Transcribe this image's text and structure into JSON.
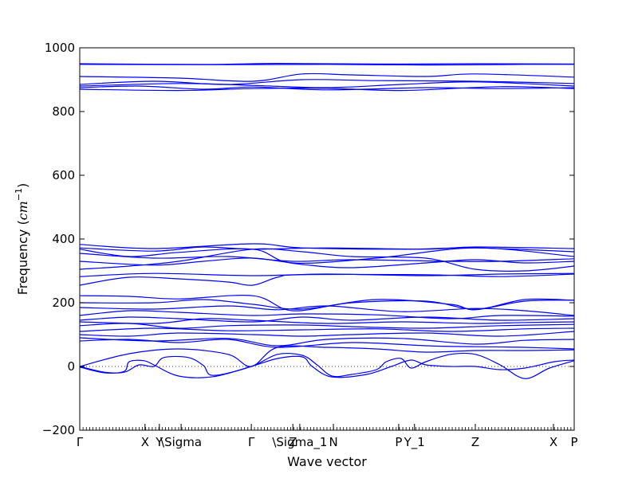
{
  "chart_data": {
    "type": "line",
    "xlabel": "Wave vector",
    "ylabel": "Frequency ($cm^{-1}$)",
    "ylabel_parts": {
      "prefix": "Frequency (",
      "unit_base": "cm",
      "unit_exp": "−1",
      "suffix": ")"
    },
    "ylim": [
      -200,
      1000
    ],
    "yticks": [
      -200,
      0,
      200,
      400,
      600,
      800,
      1000
    ],
    "ytick_labels": [
      "−200",
      "0",
      "200",
      "400",
      "600",
      "800",
      "1000"
    ],
    "x_range": [
      0,
      1
    ],
    "grid": false,
    "legend": "none",
    "line_color": "#0000ff",
    "zero_line": {
      "y": 0,
      "style": "dotted"
    },
    "high_symmetry_points": [
      {
        "label": "Γ",
        "x": 0.0
      },
      {
        "label": "X",
        "x": 0.132
      },
      {
        "label": "Y",
        "x": 0.161
      },
      {
        "label": "\\Sigma",
        "x": 0.205
      },
      {
        "label": "Γ",
        "x": 0.347
      },
      {
        "label": "Z",
        "x": 0.431
      },
      {
        "label": "\\Sigma_1",
        "x": 0.445
      },
      {
        "label": "N",
        "x": 0.513
      },
      {
        "label": "P",
        "x": 0.645
      },
      {
        "label": "Y_1",
        "x": 0.677
      },
      {
        "label": "Z",
        "x": 0.8
      },
      {
        "label": "X",
        "x": 0.958
      },
      {
        "label": "P",
        "x": 1.0
      }
    ],
    "series": [
      {
        "points": [
          [
            0,
            950
          ],
          [
            0.25,
            948
          ],
          [
            0.4,
            951
          ],
          [
            0.6,
            949
          ],
          [
            0.8,
            950
          ],
          [
            1,
            949
          ]
        ]
      },
      {
        "points": [
          [
            0,
            948
          ],
          [
            0.3,
            947
          ],
          [
            0.5,
            948
          ],
          [
            0.7,
            946
          ],
          [
            0.9,
            948
          ],
          [
            1,
            948
          ]
        ]
      },
      {
        "points": [
          [
            0,
            910
          ],
          [
            0.2,
            905
          ],
          [
            0.35,
            895
          ],
          [
            0.45,
            918
          ],
          [
            0.55,
            915
          ],
          [
            0.7,
            910
          ],
          [
            0.8,
            918
          ],
          [
            1,
            908
          ]
        ]
      },
      {
        "points": [
          [
            0,
            885
          ],
          [
            0.15,
            895
          ],
          [
            0.3,
            885
          ],
          [
            0.45,
            900
          ],
          [
            0.6,
            897
          ],
          [
            0.8,
            895
          ],
          [
            1,
            888
          ]
        ]
      },
      {
        "points": [
          [
            0,
            880
          ],
          [
            0.2,
            888
          ],
          [
            0.35,
            882
          ],
          [
            0.5,
            875
          ],
          [
            0.65,
            885
          ],
          [
            0.8,
            893
          ],
          [
            1,
            880
          ]
        ]
      },
      {
        "points": [
          [
            0,
            875
          ],
          [
            0.12,
            880
          ],
          [
            0.25,
            870
          ],
          [
            0.35,
            877
          ],
          [
            0.5,
            868
          ],
          [
            0.7,
            875
          ],
          [
            0.85,
            872
          ],
          [
            1,
            875
          ]
        ]
      },
      {
        "points": [
          [
            0,
            870
          ],
          [
            0.2,
            866
          ],
          [
            0.35,
            872
          ],
          [
            0.5,
            873
          ],
          [
            0.65,
            866
          ],
          [
            0.85,
            878
          ],
          [
            1,
            872
          ]
        ]
      },
      {
        "points": [
          [
            0,
            383
          ],
          [
            0.15,
            370
          ],
          [
            0.35,
            385
          ],
          [
            0.45,
            372
          ],
          [
            0.65,
            368
          ],
          [
            0.8,
            372
          ],
          [
            1,
            360
          ]
        ]
      },
      {
        "points": [
          [
            0,
            372
          ],
          [
            0.15,
            362
          ],
          [
            0.25,
            375
          ],
          [
            0.35,
            368
          ],
          [
            0.5,
            372
          ],
          [
            0.7,
            368
          ],
          [
            0.8,
            375
          ],
          [
            1,
            370
          ]
        ]
      },
      {
        "points": [
          [
            0,
            368
          ],
          [
            0.1,
            345
          ],
          [
            0.2,
            358
          ],
          [
            0.35,
            368
          ],
          [
            0.43,
            325
          ],
          [
            0.6,
            340
          ],
          [
            0.8,
            372
          ],
          [
            1,
            345
          ]
        ]
      },
      {
        "points": [
          [
            0,
            355
          ],
          [
            0.15,
            340
          ],
          [
            0.3,
            345
          ],
          [
            0.43,
            330
          ],
          [
            0.55,
            335
          ],
          [
            0.75,
            330
          ],
          [
            0.85,
            330
          ],
          [
            1,
            338
          ]
        ]
      },
      {
        "points": [
          [
            0,
            330
          ],
          [
            0.15,
            318
          ],
          [
            0.25,
            330
          ],
          [
            0.35,
            340
          ],
          [
            0.45,
            320
          ],
          [
            0.55,
            310
          ],
          [
            0.7,
            325
          ],
          [
            0.8,
            335
          ],
          [
            0.9,
            325
          ],
          [
            1,
            330
          ]
        ]
      },
      {
        "points": [
          [
            0,
            305
          ],
          [
            0.1,
            315
          ],
          [
            0.2,
            330
          ],
          [
            0.35,
            368
          ],
          [
            0.45,
            360
          ],
          [
            0.55,
            345
          ],
          [
            0.7,
            340
          ],
          [
            0.8,
            305
          ],
          [
            0.9,
            300
          ],
          [
            1,
            315
          ]
        ]
      },
      {
        "points": [
          [
            0,
            282
          ],
          [
            0.15,
            292
          ],
          [
            0.35,
            285
          ],
          [
            0.5,
            290
          ],
          [
            0.7,
            285
          ],
          [
            0.85,
            290
          ],
          [
            1,
            292
          ]
        ]
      },
      {
        "points": [
          [
            0,
            255
          ],
          [
            0.1,
            280
          ],
          [
            0.2,
            275
          ],
          [
            0.3,
            265
          ],
          [
            0.35,
            255
          ],
          [
            0.4,
            280
          ],
          [
            0.45,
            288
          ],
          [
            0.7,
            288
          ],
          [
            0.85,
            282
          ],
          [
            1,
            290
          ]
        ]
      },
      {
        "points": [
          [
            0,
            222
          ],
          [
            0.1,
            220
          ],
          [
            0.2,
            212
          ],
          [
            0.35,
            222
          ],
          [
            0.43,
            175
          ],
          [
            0.55,
            200
          ],
          [
            0.7,
            205
          ],
          [
            0.8,
            180
          ],
          [
            0.9,
            210
          ],
          [
            1,
            208
          ]
        ]
      },
      {
        "points": [
          [
            0,
            200
          ],
          [
            0.15,
            200
          ],
          [
            0.25,
            210
          ],
          [
            0.35,
            195
          ],
          [
            0.45,
            180
          ],
          [
            0.6,
            210
          ],
          [
            0.75,
            195
          ],
          [
            0.8,
            178
          ],
          [
            0.9,
            205
          ],
          [
            1,
            208
          ]
        ]
      },
      {
        "points": [
          [
            0,
            185
          ],
          [
            0.15,
            180
          ],
          [
            0.3,
            190
          ],
          [
            0.4,
            178
          ],
          [
            0.5,
            190
          ],
          [
            0.65,
            172
          ],
          [
            0.8,
            182
          ],
          [
            0.9,
            175
          ],
          [
            1,
            160
          ]
        ]
      },
      {
        "points": [
          [
            0,
            160
          ],
          [
            0.1,
            175
          ],
          [
            0.2,
            170
          ],
          [
            0.35,
            160
          ],
          [
            0.45,
            165
          ],
          [
            0.6,
            162
          ],
          [
            0.75,
            150
          ],
          [
            0.85,
            160
          ],
          [
            1,
            158
          ]
        ]
      },
      {
        "points": [
          [
            0,
            145
          ],
          [
            0.1,
            155
          ],
          [
            0.2,
            150
          ],
          [
            0.35,
            140
          ],
          [
            0.45,
            155
          ],
          [
            0.55,
            145
          ],
          [
            0.7,
            155
          ],
          [
            0.85,
            145
          ],
          [
            1,
            150
          ]
        ]
      },
      {
        "points": [
          [
            0,
            140
          ],
          [
            0.15,
            135
          ],
          [
            0.25,
            150
          ],
          [
            0.35,
            145
          ],
          [
            0.5,
            135
          ],
          [
            0.65,
            140
          ],
          [
            0.8,
            135
          ],
          [
            0.9,
            138
          ],
          [
            1,
            140
          ]
        ]
      },
      {
        "points": [
          [
            0,
            128
          ],
          [
            0.1,
            135
          ],
          [
            0.2,
            120
          ],
          [
            0.3,
            128
          ],
          [
            0.45,
            130
          ],
          [
            0.55,
            125
          ],
          [
            0.7,
            120
          ],
          [
            0.85,
            128
          ],
          [
            1,
            132
          ]
        ]
      },
      {
        "points": [
          [
            0,
            110
          ],
          [
            0.15,
            120
          ],
          [
            0.3,
            112
          ],
          [
            0.45,
            115
          ],
          [
            0.6,
            118
          ],
          [
            0.75,
            110
          ],
          [
            0.9,
            118
          ],
          [
            1,
            120
          ]
        ]
      },
      {
        "points": [
          [
            0,
            100
          ],
          [
            0.1,
            95
          ],
          [
            0.2,
            105
          ],
          [
            0.35,
            100
          ],
          [
            0.45,
            95
          ],
          [
            0.55,
            100
          ],
          [
            0.7,
            105
          ],
          [
            0.85,
            95
          ],
          [
            1,
            110
          ]
        ]
      },
      {
        "points": [
          [
            0,
            90
          ],
          [
            0.15,
            80
          ],
          [
            0.3,
            88
          ],
          [
            0.4,
            65
          ],
          [
            0.5,
            85
          ],
          [
            0.65,
            88
          ],
          [
            0.8,
            70
          ],
          [
            0.9,
            82
          ],
          [
            1,
            85
          ]
        ]
      },
      {
        "points": [
          [
            0,
            80
          ],
          [
            0.1,
            85
          ],
          [
            0.2,
            75
          ],
          [
            0.3,
            85
          ],
          [
            0.4,
            60
          ],
          [
            0.55,
            75
          ],
          [
            0.7,
            65
          ],
          [
            0.8,
            62
          ],
          [
            0.9,
            60
          ],
          [
            1,
            55
          ]
        ]
      },
      {
        "points": [
          [
            0,
            0
          ],
          [
            0.1,
            40
          ],
          [
            0.2,
            55
          ],
          [
            0.3,
            38
          ],
          [
            0.347,
            0
          ],
          [
            0.4,
            60
          ],
          [
            0.5,
            60
          ],
          [
            0.6,
            55
          ],
          [
            0.7,
            45
          ],
          [
            0.8,
            50
          ],
          [
            0.9,
            50
          ],
          [
            1,
            52
          ]
        ]
      },
      {
        "points": [
          [
            0,
            0
          ],
          [
            0.05,
            -18
          ],
          [
            0.09,
            -18
          ],
          [
            0.12,
            5
          ],
          [
            0.15,
            0
          ],
          [
            0.17,
            28
          ],
          [
            0.22,
            28
          ],
          [
            0.25,
            3
          ],
          [
            0.27,
            -28
          ],
          [
            0.347,
            0
          ],
          [
            0.4,
            38
          ],
          [
            0.45,
            35
          ],
          [
            0.48,
            5
          ],
          [
            0.51,
            -30
          ],
          [
            0.55,
            -25
          ],
          [
            0.6,
            -10
          ],
          [
            0.62,
            15
          ],
          [
            0.65,
            25
          ],
          [
            0.67,
            -5
          ],
          [
            0.7,
            15
          ],
          [
            0.75,
            38
          ],
          [
            0.8,
            38
          ],
          [
            0.85,
            5
          ],
          [
            0.9,
            -38
          ],
          [
            0.95,
            -5
          ],
          [
            1,
            18
          ]
        ]
      },
      {
        "points": [
          [
            0,
            -2
          ],
          [
            0.05,
            -20
          ],
          [
            0.09,
            -15
          ],
          [
            0.1,
            15
          ],
          [
            0.13,
            18
          ],
          [
            0.15,
            5
          ],
          [
            0.2,
            -30
          ],
          [
            0.27,
            -32
          ],
          [
            0.347,
            0
          ],
          [
            0.4,
            25
          ],
          [
            0.45,
            30
          ],
          [
            0.47,
            0
          ],
          [
            0.51,
            -33
          ],
          [
            0.58,
            -25
          ],
          [
            0.63,
            0
          ],
          [
            0.67,
            20
          ],
          [
            0.7,
            5
          ],
          [
            0.75,
            0
          ],
          [
            0.8,
            0
          ],
          [
            0.85,
            -10
          ],
          [
            0.9,
            -5
          ],
          [
            0.96,
            15
          ],
          [
            1,
            20
          ]
        ]
      }
    ]
  }
}
